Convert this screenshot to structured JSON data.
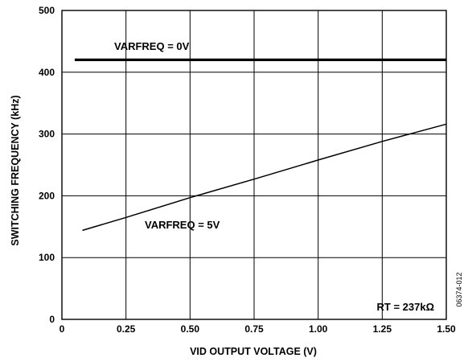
{
  "chart_data": {
    "type": "line",
    "xlabel": "VID OUTPUT VOLTAGE (V)",
    "ylabel": "SWITCHING FREQUENCY (kHz)",
    "xlim": [
      0,
      1.5
    ],
    "ylim": [
      0,
      500
    ],
    "x_ticks": [
      "0",
      "0.25",
      "0.50",
      "0.75",
      "1.00",
      "1.25",
      "1.50"
    ],
    "y_ticks": [
      "0",
      "100",
      "200",
      "300",
      "400",
      "500"
    ],
    "grid": true,
    "series": [
      {
        "name": "VARFREQ = 0V",
        "x": [
          0.05,
          1.5
        ],
        "y": [
          420,
          420
        ],
        "color": "#000000"
      },
      {
        "name": "VARFREQ = 5V",
        "x": [
          0.08,
          0.25,
          0.5,
          0.75,
          1.0,
          1.25,
          1.5
        ],
        "y": [
          144,
          165,
          197,
          227,
          258,
          288,
          316
        ],
        "color": "#000000"
      }
    ],
    "annotations": [
      "RT = 237kΩ"
    ],
    "figure_id": "06374-012"
  }
}
